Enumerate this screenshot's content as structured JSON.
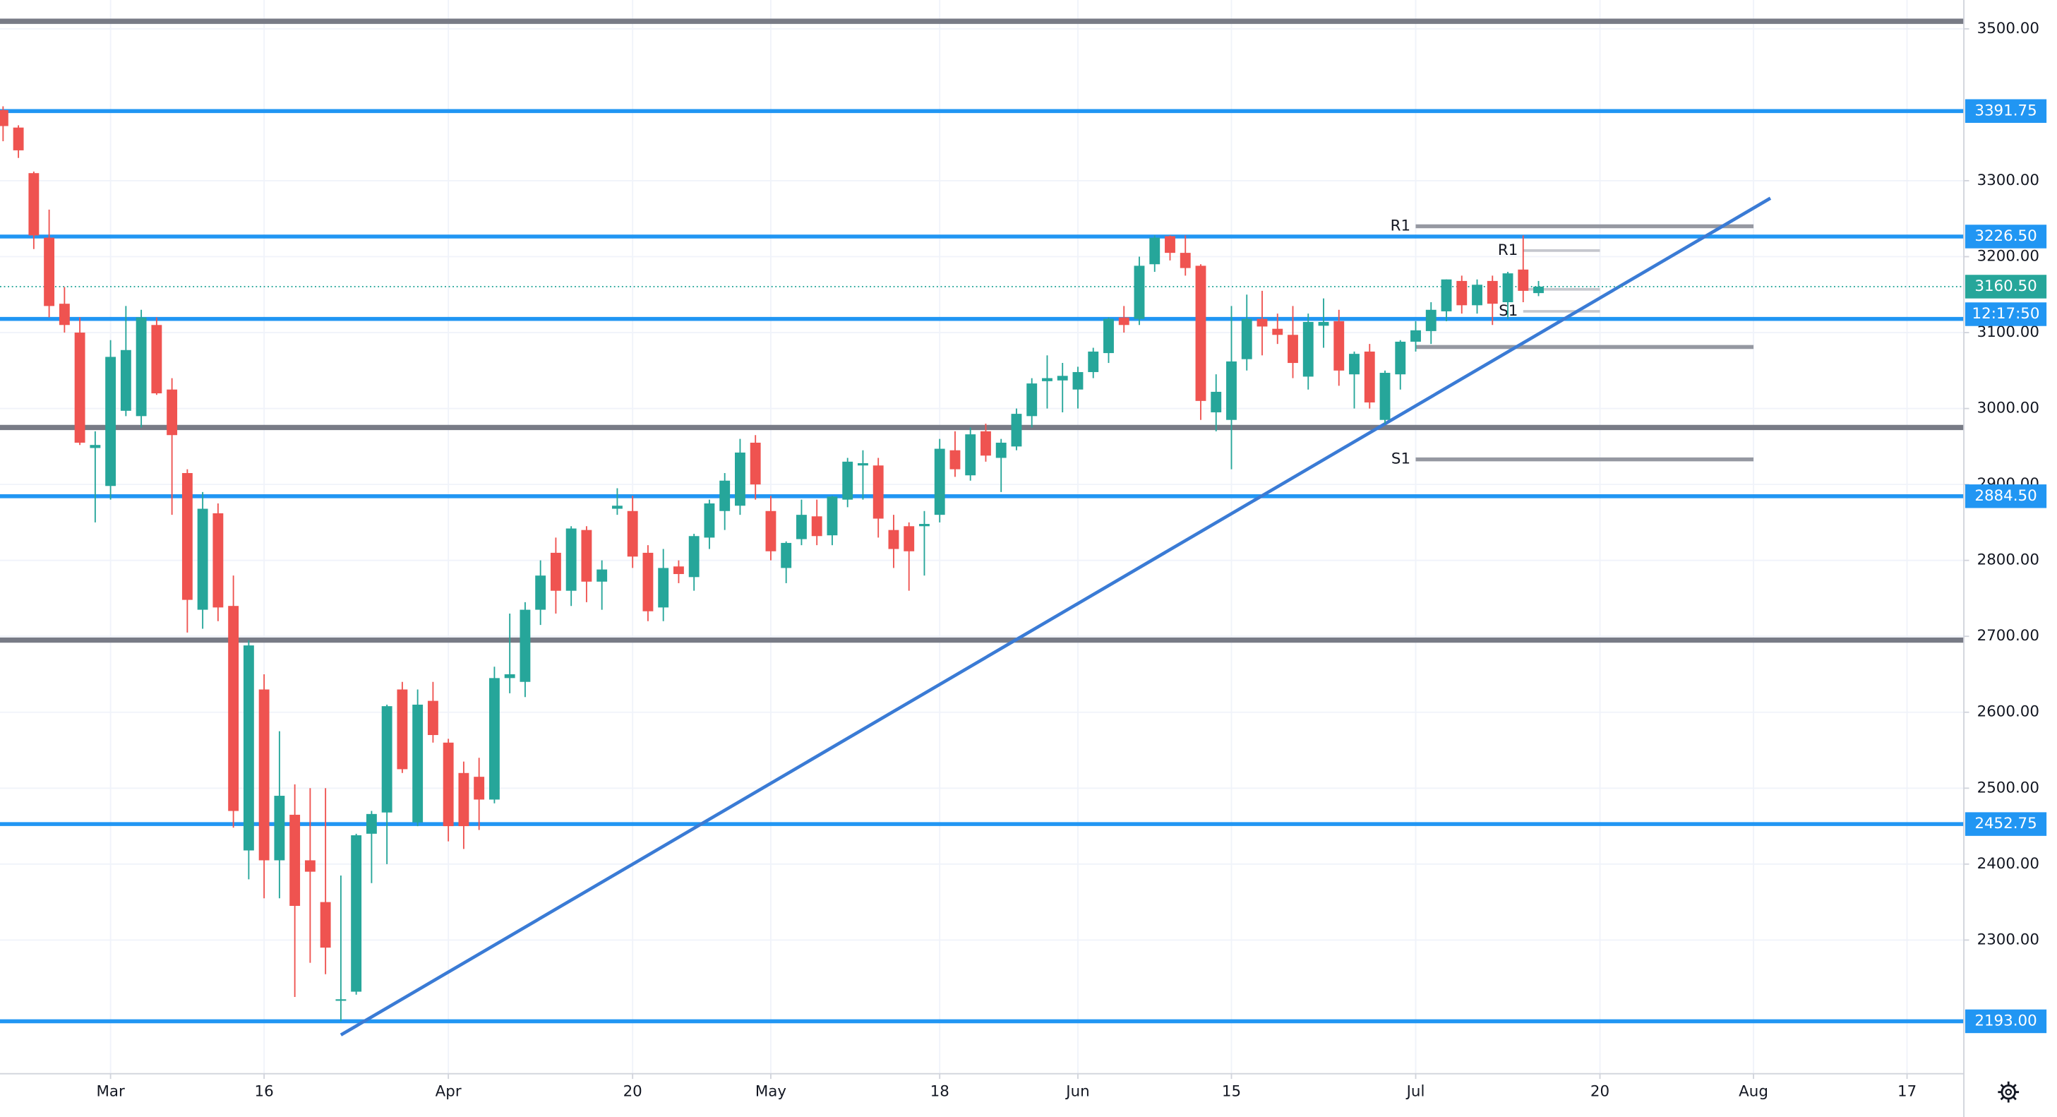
{
  "chart_data": {
    "type": "candlestick",
    "up_color": "#26a69a",
    "down_color": "#ef5350",
    "x": [
      0,
      1,
      2,
      3,
      4,
      5,
      6,
      7,
      8,
      9,
      10,
      11,
      12,
      13,
      14,
      15,
      16,
      17,
      18,
      19,
      20,
      21,
      22,
      23,
      24,
      25,
      26,
      27,
      28,
      29,
      30,
      31,
      32,
      33,
      34,
      35,
      36,
      37,
      38,
      39,
      40,
      41,
      42,
      43,
      44,
      45,
      46,
      47,
      48,
      49,
      50,
      51,
      52,
      53,
      54,
      55,
      56,
      57,
      58,
      59,
      60,
      61,
      62,
      63,
      64,
      65,
      66,
      67,
      68,
      69,
      70,
      71,
      72,
      73,
      74,
      75,
      76,
      77,
      78,
      79,
      80,
      81,
      82,
      83,
      84,
      85,
      86,
      87,
      88,
      89,
      90,
      91,
      92,
      93,
      94,
      95,
      96,
      97,
      98,
      99,
      100
    ],
    "open": [
      3393,
      3370,
      3310,
      3225,
      3138,
      3100,
      2948,
      2898,
      2997,
      2990,
      3110,
      3025,
      2915,
      2735,
      2862,
      2740,
      2418,
      2630,
      2405,
      2465,
      2405,
      2350,
      2220,
      2232,
      2440,
      2468,
      2630,
      2455,
      2615,
      2560,
      2520,
      2515,
      2485,
      2645,
      2640,
      2735,
      2810,
      2760,
      2840,
      2772,
      2868,
      2865,
      2810,
      2738,
      2792,
      2778,
      2830,
      2865,
      2872,
      2955,
      2865,
      2790,
      2828,
      2858,
      2833,
      2880,
      2925,
      2925,
      2840,
      2845,
      2845,
      2860,
      2945,
      2912,
      2970,
      2935,
      2950,
      2990,
      3036,
      3037,
      3025,
      3048,
      3073,
      3120,
      3118,
      3190,
      3227,
      3205,
      3188,
      2995,
      2985,
      3065,
      3118,
      3105,
      3097,
      3042,
      3109,
      3115,
      3045,
      3075,
      2985,
      3045,
      3088,
      3102,
      3128,
      3168,
      3136,
      3168,
      3140,
      3183,
      3152
    ],
    "high": [
      3398,
      3373,
      3312,
      3262,
      3160,
      3120,
      2970,
      3090,
      3135,
      3130,
      3120,
      3040,
      2920,
      2890,
      2875,
      2780,
      2695,
      2650,
      2575,
      2505,
      2500,
      2500,
      2385,
      2440,
      2470,
      2610,
      2640,
      2630,
      2640,
      2565,
      2535,
      2540,
      2660,
      2730,
      2745,
      2800,
      2830,
      2845,
      2845,
      2800,
      2895,
      2885,
      2820,
      2815,
      2800,
      2835,
      2880,
      2915,
      2960,
      2965,
      2885,
      2825,
      2880,
      2880,
      2885,
      2935,
      2945,
      2935,
      2860,
      2850,
      2865,
      2960,
      2970,
      2975,
      2980,
      2960,
      3000,
      3040,
      3070,
      3060,
      3055,
      3080,
      3120,
      3135,
      3200,
      3228,
      3228,
      3228,
      3190,
      3045,
      3135,
      3150,
      3155,
      3125,
      3135,
      3125,
      3145,
      3130,
      3075,
      3085,
      3050,
      3090,
      3115,
      3140,
      3170,
      3175,
      3170,
      3175,
      3180,
      3228,
      3168
    ],
    "low": [
      3352,
      3330,
      3210,
      3120,
      3100,
      2952,
      2850,
      2880,
      2990,
      2975,
      3018,
      2860,
      2705,
      2710,
      2720,
      2448,
      2380,
      2355,
      2355,
      2225,
      2270,
      2255,
      2193,
      2228,
      2375,
      2400,
      2520,
      2450,
      2560,
      2430,
      2420,
      2445,
      2480,
      2625,
      2620,
      2715,
      2730,
      2740,
      2745,
      2735,
      2860,
      2790,
      2720,
      2720,
      2770,
      2760,
      2815,
      2840,
      2860,
      2880,
      2800,
      2770,
      2820,
      2820,
      2820,
      2870,
      2880,
      2830,
      2790,
      2760,
      2780,
      2850,
      2910,
      2905,
      2930,
      2890,
      2945,
      2975,
      3000,
      2995,
      3000,
      3040,
      3060,
      3100,
      3110,
      3180,
      3195,
      3175,
      2985,
      2970,
      2920,
      3050,
      3070,
      3085,
      3040,
      3025,
      3080,
      3030,
      3000,
      3000,
      2980,
      3025,
      3075,
      3085,
      3115,
      3125,
      3125,
      3110,
      3118,
      3140,
      3148
    ],
    "close": [
      3372,
      3340,
      3228,
      3135,
      3110,
      2955,
      2952,
      3068,
      3077,
      3120,
      3020,
      2965,
      2748,
      2868,
      2738,
      2470,
      2688,
      2405,
      2490,
      2345,
      2390,
      2290,
      2222,
      2438,
      2466,
      2608,
      2525,
      2610,
      2570,
      2450,
      2450,
      2485,
      2645,
      2650,
      2735,
      2780,
      2760,
      2842,
      2772,
      2788,
      2872,
      2805,
      2733,
      2790,
      2782,
      2832,
      2875,
      2905,
      2942,
      2900,
      2812,
      2823,
      2860,
      2832,
      2884,
      2930,
      2928,
      2855,
      2815,
      2812,
      2848,
      2947,
      2920,
      2966,
      2938,
      2955,
      2993,
      3033,
      3040,
      3043,
      3048,
      3075,
      3118,
      3110,
      3188,
      3225,
      3205,
      3185,
      3010,
      3022,
      3062,
      3118,
      3108,
      3097,
      3060,
      3114,
      3114,
      3050,
      3072,
      3008,
      3047,
      3088,
      3103,
      3130,
      3170,
      3136,
      3163,
      3138,
      3178,
      3155,
      3160.5
    ],
    "xlim": [
      -0.2,
      127.7
    ],
    "xticks": [
      {
        "value": 7,
        "label": "Mar"
      },
      {
        "value": 17,
        "label": "16"
      },
      {
        "value": 29,
        "label": "Apr"
      },
      {
        "value": 41,
        "label": "20"
      },
      {
        "value": 50,
        "label": "May"
      },
      {
        "value": 61,
        "label": "18"
      },
      {
        "value": 70,
        "label": "Jun"
      },
      {
        "value": 80,
        "label": "15"
      },
      {
        "value": 92,
        "label": "Jul"
      },
      {
        "value": 104,
        "label": "20"
      },
      {
        "value": 114,
        "label": "Aug"
      },
      {
        "value": 124,
        "label": "17"
      }
    ],
    "ylim": [
      2124,
      3538
    ],
    "yticks": [
      {
        "value": 2300,
        "label": "2300.00"
      },
      {
        "value": 2400,
        "label": "2400.00"
      },
      {
        "value": 2500,
        "label": "2500.00"
      },
      {
        "value": 2600,
        "label": "2600.00"
      },
      {
        "value": 2700,
        "label": "2700.00"
      },
      {
        "value": 2800,
        "label": "2800.00"
      },
      {
        "value": 2900,
        "label": "2900.00"
      },
      {
        "value": 3000,
        "label": "3000.00"
      },
      {
        "value": 3100,
        "label": "3100.00"
      },
      {
        "value": 3200,
        "label": "3200.00"
      },
      {
        "value": 3300,
        "label": "3300.00"
      },
      {
        "value": 3500,
        "label": "3500.00"
      }
    ],
    "grid": true,
    "levels": [
      {
        "value": 3510,
        "color": "#787b86"
      },
      {
        "value": 3391.75,
        "label": "3391.75",
        "color": "#2196f3"
      },
      {
        "value": 3226.5,
        "label": "3226.50",
        "color": "#2196f3"
      },
      {
        "value": 3118,
        "color": "#2196f3"
      },
      {
        "value": 2975,
        "color": "#787b86"
      },
      {
        "value": 2884.5,
        "label": "2884.50",
        "color": "#2196f3"
      },
      {
        "value": 2695,
        "color": "#787b86"
      },
      {
        "value": 2452.75,
        "label": "2452.75",
        "color": "#2196f3"
      },
      {
        "value": 2193,
        "label": "2193.00",
        "color": "#2196f3"
      }
    ],
    "pivots": [
      {
        "label": "R1",
        "value": 3240,
        "x": [
          92,
          114
        ],
        "color": "#9598a1"
      },
      {
        "value": 3081,
        "x": [
          92,
          114
        ],
        "color": "#9598a1"
      },
      {
        "label": "S1",
        "value": 2933,
        "x": [
          92,
          114
        ],
        "color": "#9598a1"
      },
      {
        "label": "R1",
        "value": 3208,
        "x": [
          99,
          104
        ],
        "color": "#c5c7cd"
      },
      {
        "value": 3157,
        "x": [
          99,
          104
        ],
        "color": "#c5c7cd"
      },
      {
        "label": "S1",
        "value": 3128,
        "x": [
          99,
          104
        ],
        "color": "#c5c7cd"
      }
    ],
    "trendline": {
      "x": [
        22,
        115.1
      ],
      "y": [
        2175,
        3277
      ],
      "color": "#3a7bd5"
    },
    "last_price": {
      "value": 3160.5,
      "label": "3160.50",
      "color": "#26a69a"
    },
    "countdown": "12:17:50"
  }
}
